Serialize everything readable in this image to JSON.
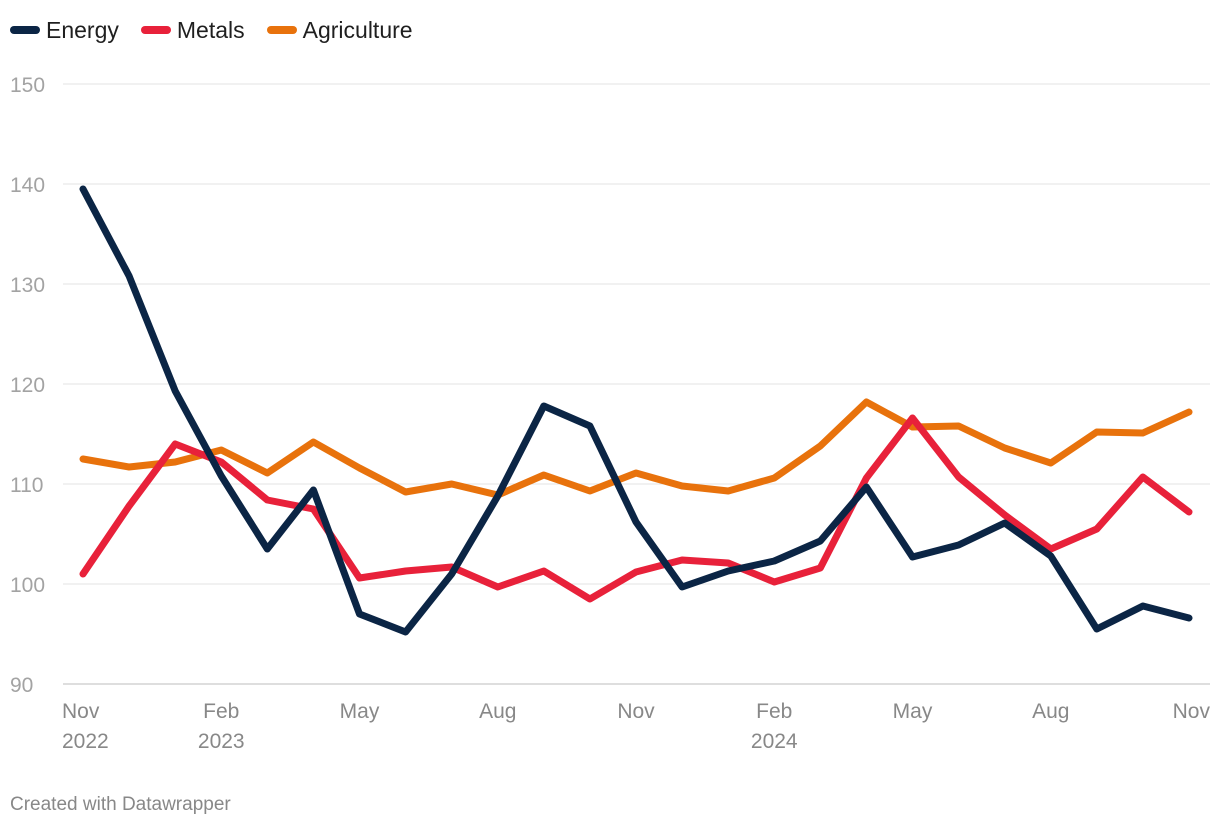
{
  "chart_data": {
    "type": "line",
    "title": "",
    "xlabel": "",
    "ylabel": "",
    "ylim": [
      90,
      150
    ],
    "yticks": [
      "90",
      "100",
      "110",
      "120",
      "130",
      "140",
      "150"
    ],
    "x": [
      "2022-11",
      "2022-12",
      "2023-01",
      "2023-02",
      "2023-03",
      "2023-04",
      "2023-05",
      "2023-06",
      "2023-07",
      "2023-08",
      "2023-09",
      "2023-10",
      "2023-11",
      "2023-12",
      "2024-01",
      "2024-02",
      "2024-03",
      "2024-04",
      "2024-05",
      "2024-06",
      "2024-07",
      "2024-08",
      "2024-09",
      "2024-10",
      "2024-11"
    ],
    "xticks": [
      {
        "index": 0,
        "month": "Nov",
        "year": "2022"
      },
      {
        "index": 3,
        "month": "Feb",
        "year": "2023"
      },
      {
        "index": 6,
        "month": "May",
        "year": ""
      },
      {
        "index": 9,
        "month": "Aug",
        "year": ""
      },
      {
        "index": 12,
        "month": "Nov",
        "year": ""
      },
      {
        "index": 15,
        "month": "Feb",
        "year": "2024"
      },
      {
        "index": 18,
        "month": "May",
        "year": ""
      },
      {
        "index": 21,
        "month": "Aug",
        "year": ""
      },
      {
        "index": 24,
        "month": "Nov",
        "year": ""
      }
    ],
    "series": [
      {
        "name": "Energy",
        "color": "#0b2545",
        "values": [
          139.5,
          130.8,
          119.3,
          110.8,
          103.5,
          109.4,
          97.0,
          95.2,
          101.0,
          108.8,
          117.8,
          115.8,
          106.2,
          99.7,
          101.3,
          102.3,
          104.3,
          109.7,
          102.7,
          103.9,
          106.1,
          102.8,
          95.5,
          97.8,
          96.6
        ]
      },
      {
        "name": "Metals",
        "color": "#e8213a",
        "values": [
          101.0,
          107.8,
          114.0,
          112.2,
          108.4,
          107.5,
          100.6,
          101.3,
          101.7,
          99.7,
          101.3,
          98.5,
          101.2,
          102.4,
          102.1,
          100.2,
          101.6,
          110.6,
          116.6,
          110.7,
          106.9,
          103.5,
          105.5,
          110.7,
          107.2
        ]
      },
      {
        "name": "Agriculture",
        "color": "#e8720c",
        "values": [
          112.5,
          111.7,
          112.2,
          113.4,
          111.1,
          114.2,
          111.6,
          109.2,
          110.0,
          108.9,
          110.9,
          109.3,
          111.1,
          109.8,
          109.3,
          110.6,
          113.8,
          118.2,
          115.7,
          115.8,
          113.6,
          112.1,
          115.2,
          115.1,
          117.2
        ]
      }
    ]
  },
  "footer": {
    "credit": "Created with Datawrapper"
  }
}
